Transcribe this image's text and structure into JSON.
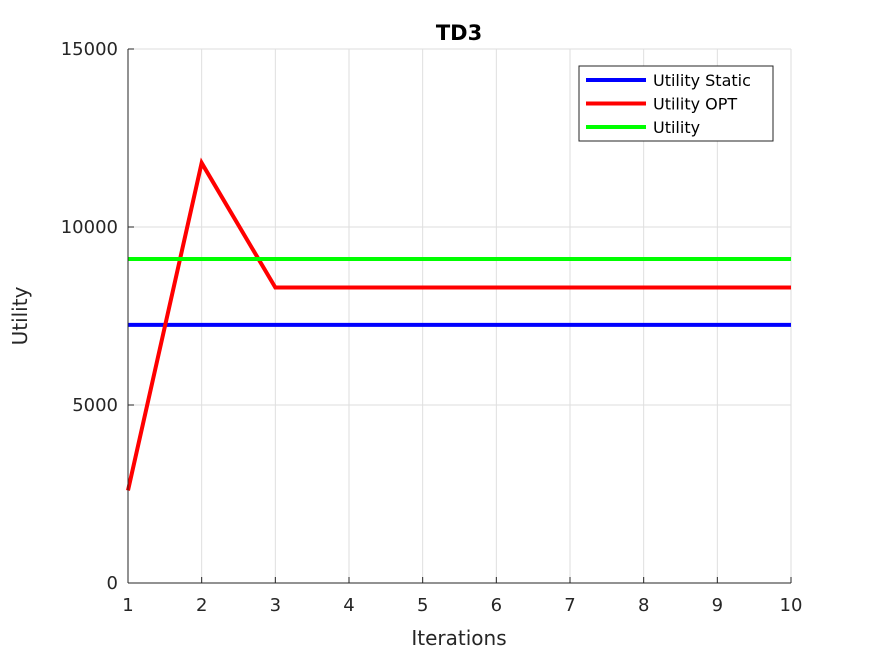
{
  "chart_data": {
    "type": "line",
    "title": "TD3",
    "xlabel": "Iterations",
    "ylabel": "Utility",
    "x": [
      1,
      2,
      3,
      4,
      5,
      6,
      7,
      8,
      9,
      10
    ],
    "xlim": [
      1,
      10
    ],
    "ylim": [
      0,
      15000
    ],
    "xticks": [
      "1",
      "2",
      "3",
      "4",
      "5",
      "6",
      "7",
      "8",
      "9",
      "10"
    ],
    "yticks": [
      "0",
      "5000",
      "10000",
      "15000"
    ],
    "grid": true,
    "legend_position": "top-right",
    "series": [
      {
        "name": "Utility Static",
        "color": "#0000ff",
        "values": [
          7250,
          7250,
          7250,
          7250,
          7250,
          7250,
          7250,
          7250,
          7250,
          7250
        ]
      },
      {
        "name": "Utility OPT",
        "color": "#ff0000",
        "values": [
          2600,
          11800,
          8300,
          8300,
          8300,
          8300,
          8300,
          8300,
          8300,
          8300
        ]
      },
      {
        "name": "Utility",
        "color": "#00ff00",
        "values": [
          9100,
          9100,
          9100,
          9100,
          9100,
          9100,
          9100,
          9100,
          9100,
          9100
        ]
      }
    ]
  }
}
